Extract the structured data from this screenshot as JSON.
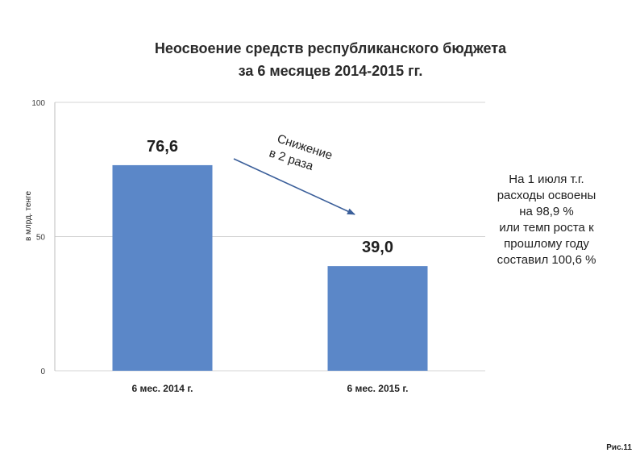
{
  "title_lines": [
    "Неосвоение  средств  республиканского бюджета",
    "за 6 месяцев 2014-2015 гг."
  ],
  "chart_data": {
    "type": "bar",
    "title": "",
    "xlabel": "",
    "ylabel": "в млрд. тенге",
    "ylim": [
      0,
      100
    ],
    "yticks": [
      0,
      50,
      100
    ],
    "grid": true,
    "categories": [
      "6 мес. 2014 г.",
      "6 мес. 2015 г."
    ],
    "values": [
      76.6,
      39.0
    ],
    "data_labels": [
      "76,6",
      "39,0"
    ],
    "bar_color": "#5b87c8"
  },
  "annotation": {
    "line1": "Снижение",
    "line2": "в 2 раза"
  },
  "side_note": [
    "На 1 июля т.г.",
    "расходы освоены",
    "на 98,9 %",
    "или темп роста к",
    "прошлому году",
    "составил 100,6 %"
  ],
  "figure_label": "Рис.11"
}
